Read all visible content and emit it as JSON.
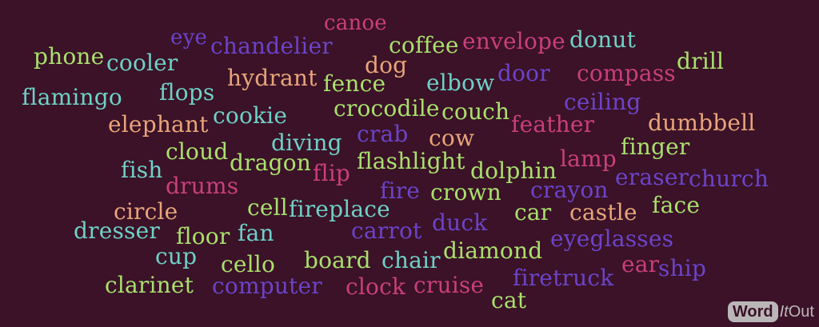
{
  "colors": {
    "background": "#3b1227",
    "pink": "#c93f7c",
    "purple": "#6b44c9",
    "teal": "#6fd0c8",
    "lime": "#a9e06e",
    "peach": "#e8a57a"
  },
  "words": [
    {
      "text": "canoe",
      "color": "pink"
    },
    {
      "text": "eye",
      "color": "purple"
    },
    {
      "text": "chandelier",
      "color": "purple"
    },
    {
      "text": "coffee",
      "color": "lime"
    },
    {
      "text": "envelope",
      "color": "pink"
    },
    {
      "text": "donut",
      "color": "teal"
    },
    {
      "text": "phone",
      "color": "lime"
    },
    {
      "text": "cooler",
      "color": "teal"
    },
    {
      "text": "dog",
      "color": "peach"
    },
    {
      "text": "drill",
      "color": "lime"
    },
    {
      "text": "hydrant",
      "color": "peach"
    },
    {
      "text": "door",
      "color": "purple"
    },
    {
      "text": "compass",
      "color": "pink"
    },
    {
      "text": "fence",
      "color": "lime"
    },
    {
      "text": "elbow",
      "color": "teal"
    },
    {
      "text": "flamingo",
      "color": "teal"
    },
    {
      "text": "flops",
      "color": "teal"
    },
    {
      "text": "ceiling",
      "color": "purple"
    },
    {
      "text": "crocodile",
      "color": "lime"
    },
    {
      "text": "couch",
      "color": "lime"
    },
    {
      "text": "cookie",
      "color": "teal"
    },
    {
      "text": "elephant",
      "color": "peach"
    },
    {
      "text": "feather",
      "color": "pink"
    },
    {
      "text": "dumbbell",
      "color": "peach"
    },
    {
      "text": "crab",
      "color": "purple"
    },
    {
      "text": "cow",
      "color": "peach"
    },
    {
      "text": "diving",
      "color": "teal"
    },
    {
      "text": "finger",
      "color": "lime"
    },
    {
      "text": "cloud",
      "color": "lime"
    },
    {
      "text": "lamp",
      "color": "pink"
    },
    {
      "text": "dragon",
      "color": "lime"
    },
    {
      "text": "flashlight",
      "color": "lime"
    },
    {
      "text": "fish",
      "color": "teal"
    },
    {
      "text": "flip",
      "color": "pink"
    },
    {
      "text": "dolphin",
      "color": "lime"
    },
    {
      "text": "eraser",
      "color": "purple"
    },
    {
      "text": "church",
      "color": "purple"
    },
    {
      "text": "drums",
      "color": "pink"
    },
    {
      "text": "fire",
      "color": "purple"
    },
    {
      "text": "crown",
      "color": "lime"
    },
    {
      "text": "crayon",
      "color": "purple"
    },
    {
      "text": "face",
      "color": "lime"
    },
    {
      "text": "cell",
      "color": "lime"
    },
    {
      "text": "fireplace",
      "color": "teal"
    },
    {
      "text": "circle",
      "color": "peach"
    },
    {
      "text": "car",
      "color": "lime"
    },
    {
      "text": "castle",
      "color": "peach"
    },
    {
      "text": "duck",
      "color": "purple"
    },
    {
      "text": "dresser",
      "color": "teal"
    },
    {
      "text": "carrot",
      "color": "purple"
    },
    {
      "text": "floor",
      "color": "lime"
    },
    {
      "text": "fan",
      "color": "teal"
    },
    {
      "text": "eyeglasses",
      "color": "purple"
    },
    {
      "text": "diamond",
      "color": "lime"
    },
    {
      "text": "cup",
      "color": "teal"
    },
    {
      "text": "ear",
      "color": "pink"
    },
    {
      "text": "cello",
      "color": "lime"
    },
    {
      "text": "board",
      "color": "lime"
    },
    {
      "text": "chair",
      "color": "teal"
    },
    {
      "text": "ship",
      "color": "purple"
    },
    {
      "text": "firetruck",
      "color": "purple"
    },
    {
      "text": "clarinet",
      "color": "lime"
    },
    {
      "text": "computer",
      "color": "purple"
    },
    {
      "text": "clock",
      "color": "pink"
    },
    {
      "text": "cruise",
      "color": "pink"
    },
    {
      "text": "cat",
      "color": "lime"
    }
  ],
  "watermark": {
    "word": "Word",
    "it": "It",
    "out": "Out"
  }
}
